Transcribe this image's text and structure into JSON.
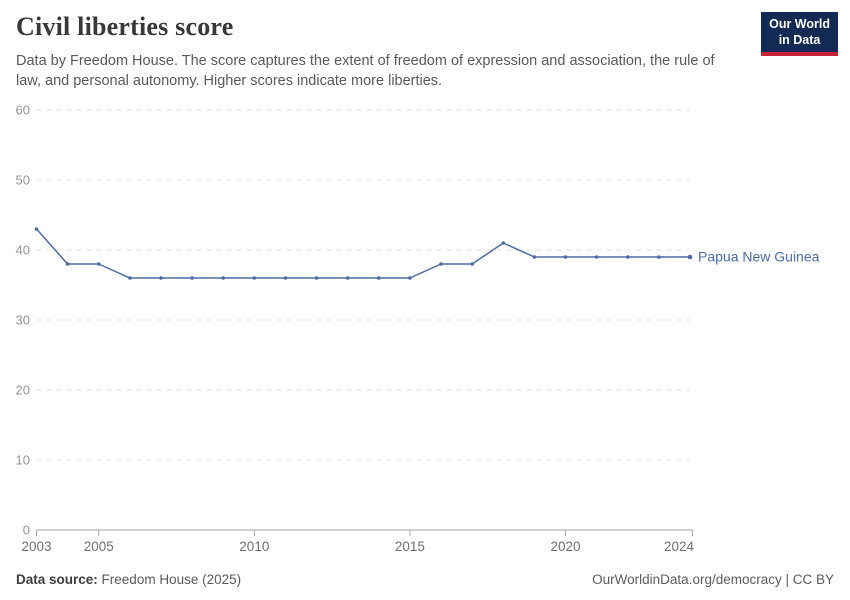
{
  "header": {
    "title": "Civil liberties score",
    "subtitle": "Data by Freedom House. The score captures the extent of freedom of expression and association, the rule of law, and personal autonomy. Higher scores indicate more liberties.",
    "logo": {
      "line1": "Our World",
      "line2": "in Data"
    }
  },
  "chart_data": {
    "type": "line",
    "title": "Civil liberties score",
    "x": [
      2003,
      2004,
      2005,
      2006,
      2007,
      2008,
      2009,
      2010,
      2011,
      2012,
      2013,
      2014,
      2015,
      2016,
      2017,
      2018,
      2019,
      2020,
      2021,
      2022,
      2023,
      2024
    ],
    "series": [
      {
        "name": "Papua New Guinea",
        "values": [
          43,
          38,
          38,
          36,
          36,
          36,
          36,
          36,
          36,
          36,
          36,
          36,
          36,
          38,
          38,
          41,
          39,
          39,
          39,
          39,
          39,
          39
        ]
      }
    ],
    "xlabel": "",
    "ylabel": "",
    "ylim": [
      0,
      60
    ],
    "yticks": [
      0,
      10,
      20,
      30,
      40,
      50,
      60
    ],
    "xticks": [
      2003,
      2005,
      2010,
      2015,
      2020,
      2024
    ],
    "grid": true,
    "gridline_style": "dashed",
    "legend_position": "end-of-line",
    "line_color": "#4d6ba3",
    "label_color": "#4d6ba3",
    "gridline_color": "#e2e2e2",
    "axis_color": "#a6a6a6",
    "ytick_label_color": "#969696",
    "xtick_label_color": "#6f6f6f"
  },
  "colors": {
    "accent_blue": "#4d6ba3",
    "logo_background": "#122a54",
    "logo_stripe": "#c82337"
  },
  "footer": {
    "source_label": "Data source:",
    "source_value": "Freedom House (2025)",
    "credit": "OurWorldinData.org/democracy | CC BY"
  }
}
